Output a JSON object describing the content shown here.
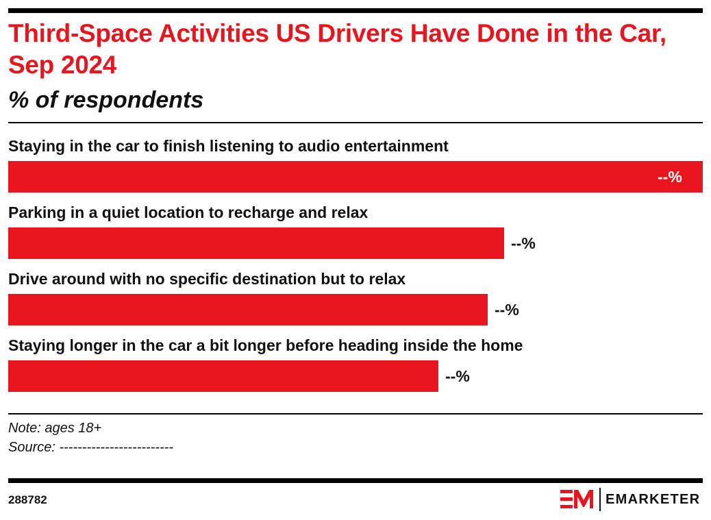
{
  "chart_data": {
    "type": "bar",
    "orientation": "horizontal",
    "title": "Third-Space Activities US Drivers Have Done in the Car, Sep 2024",
    "subtitle": "% of respondents",
    "categories": [
      "Staying in the car to finish listening to audio entertainment",
      "Parking in a quiet location to recharge and relax",
      "Drive around with no specific destination but to relax",
      "Staying longer in the car a bit longer before heading inside the home"
    ],
    "values": [
      100,
      71.4,
      69,
      61.9
    ],
    "value_labels": [
      "--%",
      "--%",
      "--%",
      "--%"
    ],
    "value_note": "values are relative bar lengths; the chart prints no numbers",
    "bar_color": "#e8141e",
    "grid": false,
    "legend": "none"
  },
  "footer": {
    "note": "Note: ages 18+",
    "source": "Source: -------------------------",
    "chart_id": "288782",
    "brand": "EMARKETER"
  },
  "colors": {
    "accent": "#e8141e",
    "text": "#111111",
    "rule": "#000000"
  }
}
